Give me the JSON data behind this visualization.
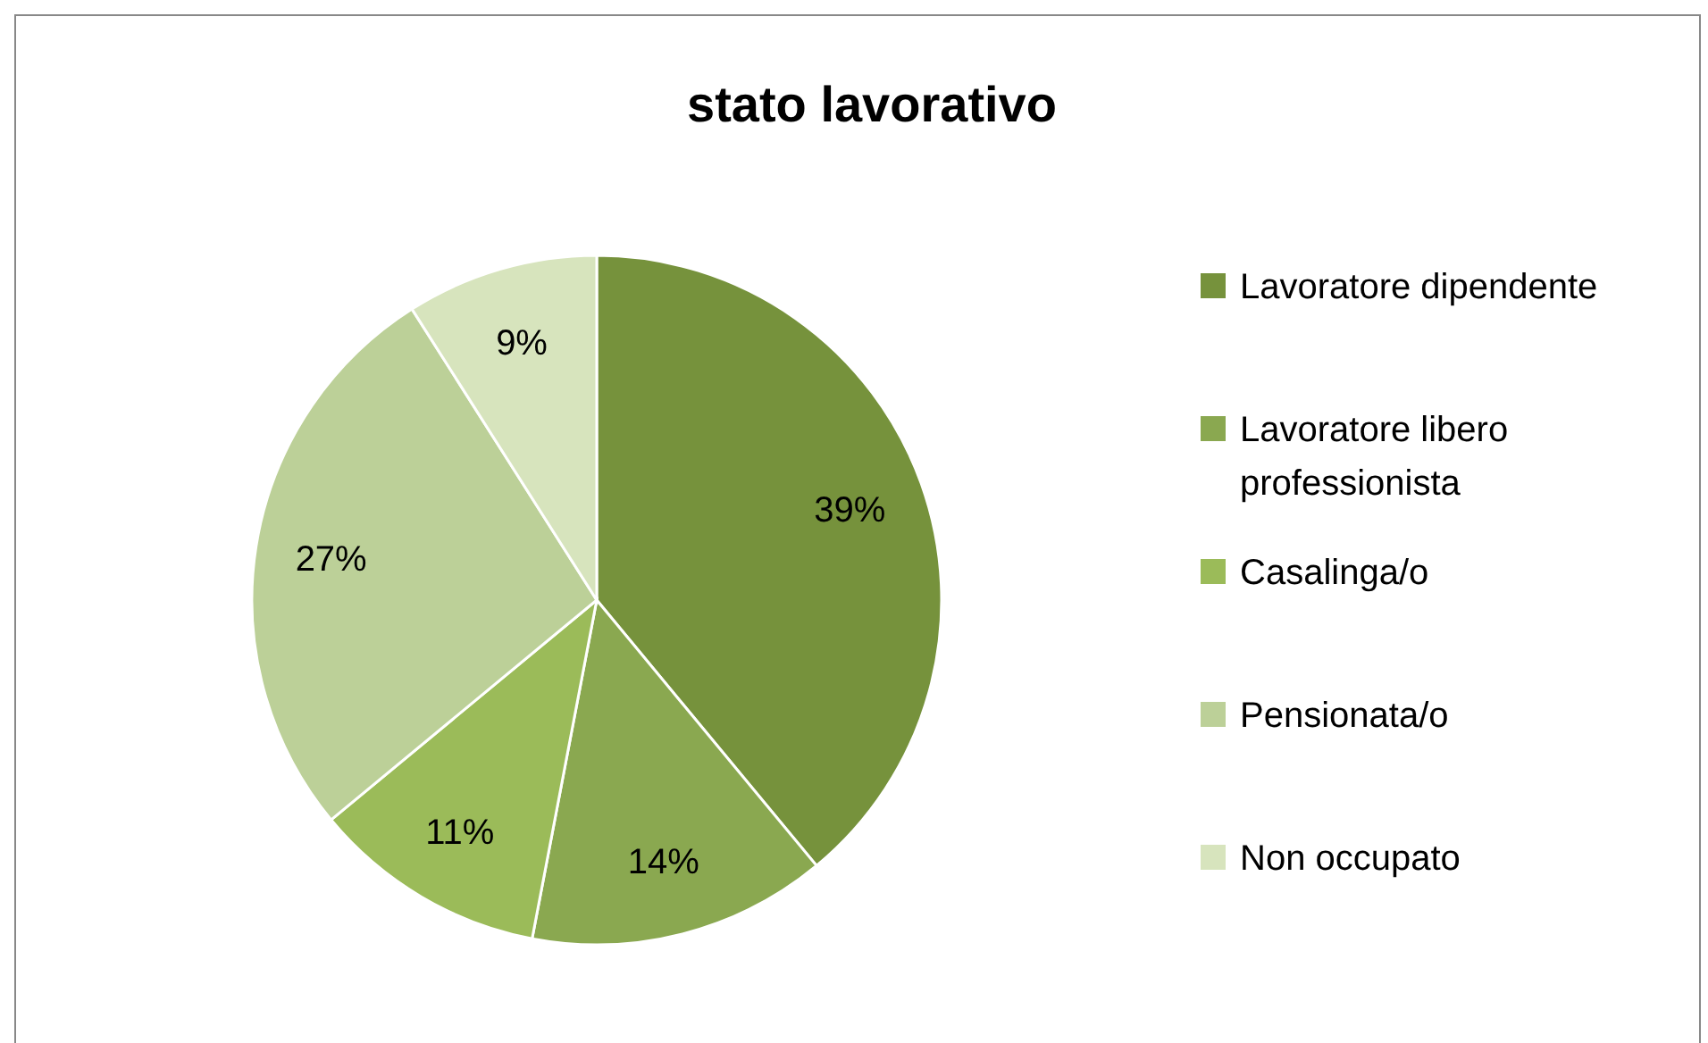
{
  "chart_data": {
    "type": "pie",
    "title": "stato lavorativo",
    "categories": [
      "Lavoratore dipendente",
      "Lavoratore libero professionista",
      "Casalinga/o",
      "Pensionata/o",
      "Non occupato"
    ],
    "values": [
      39,
      14,
      11,
      27,
      9
    ],
    "value_labels": [
      "39%",
      "14%",
      "11%",
      "27%",
      "9%"
    ],
    "colors": [
      "#76923c",
      "#8aa850",
      "#9bbb59",
      "#bcd098",
      "#d7e4bd"
    ],
    "legend": "right"
  }
}
